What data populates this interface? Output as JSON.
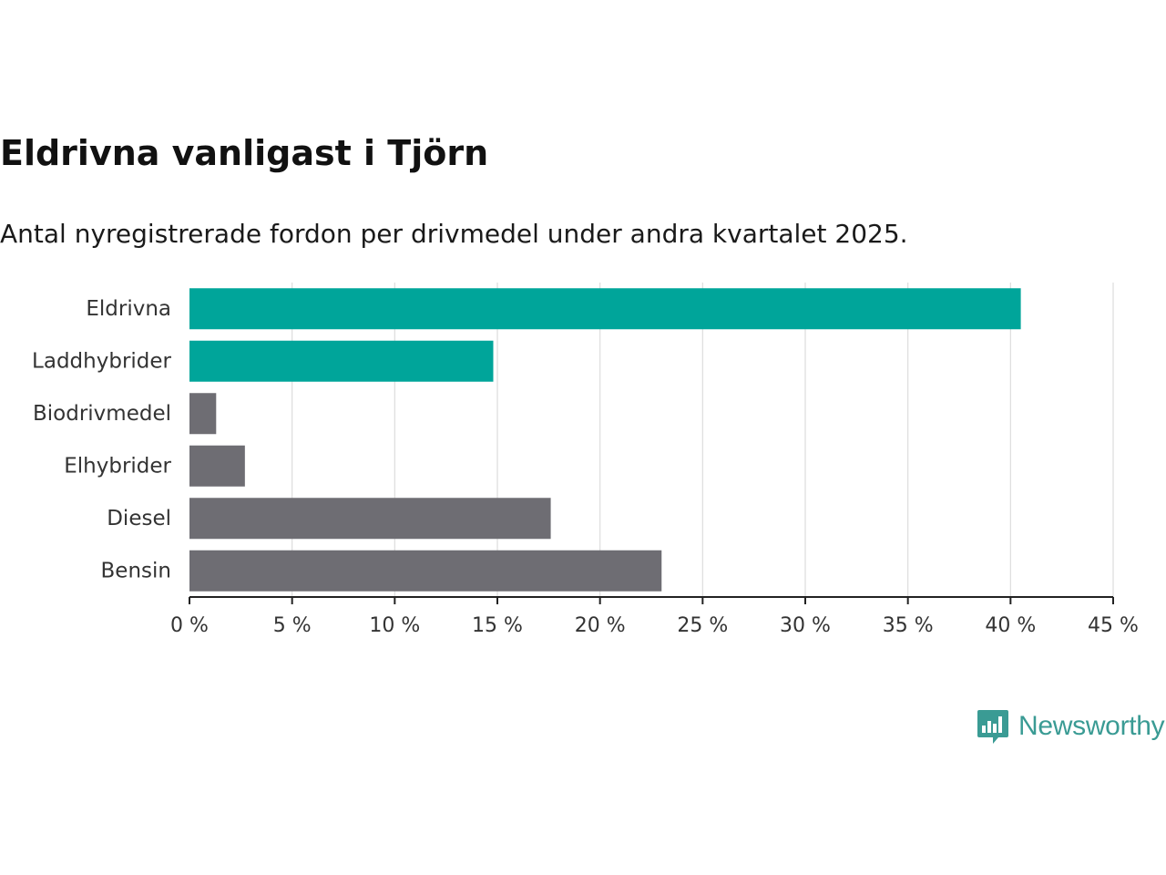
{
  "title": "Eldrivna vanligast i Tjörn",
  "subtitle": "Antal nyregistrerade fordon per drivmedel under andra kvartalet 2025.",
  "brand": {
    "name": "Newsworthy",
    "icon": "bar-chart-speech-bubble-icon",
    "color": "#3a9b94"
  },
  "chart_data": {
    "type": "bar",
    "orientation": "horizontal",
    "title": "Eldrivna vanligast i Tjörn",
    "subtitle": "Antal nyregistrerade fordon per drivmedel under andra kvartalet 2025.",
    "categories": [
      "Eldrivna",
      "Laddhybrider",
      "Biodrivmedel",
      "Elhybrider",
      "Diesel",
      "Bensin"
    ],
    "values": [
      40.5,
      14.8,
      1.3,
      2.7,
      17.6,
      23.0
    ],
    "colors": [
      "#00a59a",
      "#00a59a",
      "#6e6d73",
      "#6e6d73",
      "#6e6d73",
      "#6e6d73"
    ],
    "xlim": [
      0,
      45
    ],
    "xticks": [
      0,
      5,
      10,
      15,
      20,
      25,
      30,
      35,
      40,
      45
    ],
    "xtick_labels": [
      "0 %",
      "5 %",
      "10 %",
      "15 %",
      "20 %",
      "25 %",
      "30 %",
      "35 %",
      "40 %",
      "45 %"
    ],
    "xlabel": "",
    "ylabel": "",
    "grid": "vertical",
    "legend": "none"
  }
}
